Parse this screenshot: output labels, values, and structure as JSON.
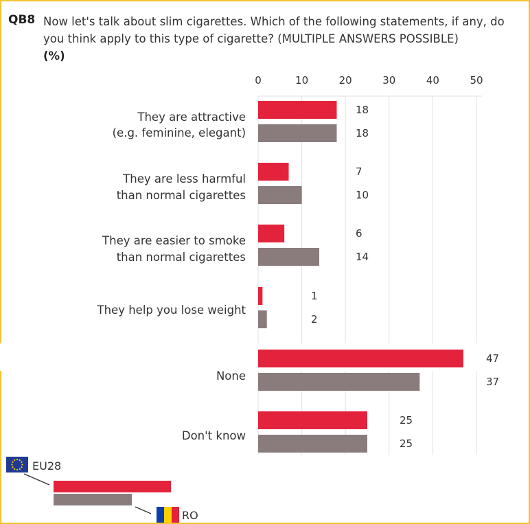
{
  "question": {
    "code": "QB8",
    "text": "Now let's talk about slim cigarettes. Which of the following statements, if any, do you think apply to this type of cigarette? (MULTIPLE ANSWERS POSSIBLE)",
    "unit": "(%)"
  },
  "chart_data": {
    "type": "bar",
    "orientation": "horizontal",
    "xlim": [
      0,
      50
    ],
    "ticks": [
      0,
      10,
      20,
      30,
      40,
      50
    ],
    "grid": true,
    "categories": [
      [
        "They are attractive",
        "(e.g. feminine, elegant)"
      ],
      [
        "They are less harmful",
        "than normal cigarettes"
      ],
      [
        "They are easier to smoke",
        "than normal cigarettes"
      ],
      [
        "They help you lose weight"
      ],
      [
        "None"
      ],
      [
        "Don't know"
      ]
    ],
    "series": [
      {
        "name": "EU28",
        "color": "#e3223c",
        "values": [
          18,
          7,
          6,
          1,
          47,
          25
        ]
      },
      {
        "name": "RO",
        "color": "#8a7b7c",
        "values": [
          18,
          10,
          14,
          2,
          37,
          25
        ]
      }
    ],
    "legend_placement": "bottom-left"
  },
  "legend": {
    "eu_icon": "eu-flag-icon",
    "ro_icon": "romania-flag-icon"
  },
  "colors": {
    "frame": "#f1c232",
    "eu28": "#e3223c",
    "ro": "#8a7b7c",
    "grid": "#e2e2e2"
  }
}
